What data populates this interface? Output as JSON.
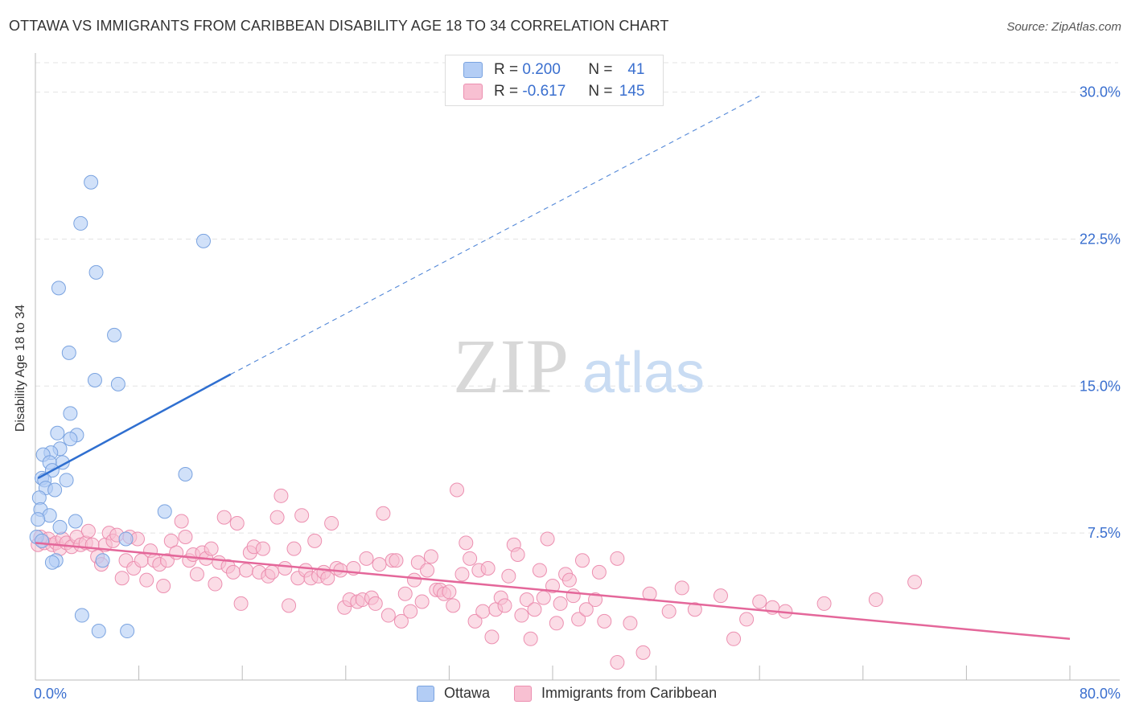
{
  "title": "OTTAWA VS IMMIGRANTS FROM CARIBBEAN DISABILITY AGE 18 TO 34 CORRELATION CHART",
  "source": "Source: ZipAtlas.com",
  "watermark": {
    "zip": "ZIP",
    "atlas": "atlas"
  },
  "legend": {
    "ottawa": {
      "r_label": "R =",
      "r_value": "0.200",
      "n_label": "N =",
      "n_value": "41"
    },
    "caribbean": {
      "r_label": "R =",
      "r_value": "-0.617",
      "n_label": "N =",
      "n_value": "145"
    }
  },
  "bottom_legend": {
    "ottawa": "Ottawa",
    "caribbean": "Immigrants from Caribbean"
  },
  "colors": {
    "ottawa_fill": "#b3cdf5",
    "ottawa_stroke": "#7aa3e0",
    "ottawa_line": "#2f6fd0",
    "caribbean_fill": "#f8c0d2",
    "caribbean_stroke": "#ec8fb0",
    "caribbean_line": "#e4679a",
    "tick_label": "#3a6fcf",
    "grid": "#e3e3e3"
  },
  "chart_data": {
    "type": "scatter",
    "title": "OTTAWA VS IMMIGRANTS FROM CARIBBEAN DISABILITY AGE 18 TO 34 CORRELATION CHART",
    "ylabel": "Disability Age 18 to 34",
    "xlabel": "",
    "xlim": [
      0,
      80
    ],
    "ylim": [
      0,
      31.5
    ],
    "x_tick_labels": [
      "0.0%",
      "80.0%"
    ],
    "y_ticks": [
      7.5,
      15.0,
      22.5,
      30.0
    ],
    "y_tick_labels": [
      "7.5%",
      "15.0%",
      "22.5%",
      "30.0%"
    ],
    "grid": true,
    "series": [
      {
        "name": "Ottawa",
        "trend": {
          "x": [
            0.2,
            15.1
          ],
          "y": [
            10.3,
            15.6
          ],
          "dashed_to": [
            56.0,
            29.8
          ]
        },
        "points": [
          [
            4.3,
            25.4
          ],
          [
            3.5,
            23.3
          ],
          [
            13.0,
            22.4
          ],
          [
            4.7,
            20.8
          ],
          [
            1.8,
            20.0
          ],
          [
            6.1,
            17.6
          ],
          [
            2.6,
            16.7
          ],
          [
            4.6,
            15.3
          ],
          [
            6.4,
            15.1
          ],
          [
            2.7,
            13.6
          ],
          [
            1.7,
            12.6
          ],
          [
            3.2,
            12.5
          ],
          [
            2.7,
            12.3
          ],
          [
            1.9,
            11.8
          ],
          [
            1.2,
            11.6
          ],
          [
            0.6,
            11.5
          ],
          [
            2.1,
            11.1
          ],
          [
            1.1,
            11.1
          ],
          [
            1.3,
            10.7
          ],
          [
            0.5,
            10.3
          ],
          [
            0.7,
            10.2
          ],
          [
            2.4,
            10.2
          ],
          [
            11.6,
            10.5
          ],
          [
            0.8,
            9.8
          ],
          [
            1.5,
            9.7
          ],
          [
            0.3,
            9.3
          ],
          [
            0.4,
            8.7
          ],
          [
            1.1,
            8.4
          ],
          [
            10.0,
            8.6
          ],
          [
            0.2,
            8.2
          ],
          [
            3.1,
            8.1
          ],
          [
            1.9,
            7.8
          ],
          [
            7.0,
            7.2
          ],
          [
            1.6,
            6.1
          ],
          [
            1.3,
            6.0
          ],
          [
            5.2,
            6.1
          ],
          [
            3.6,
            3.3
          ],
          [
            4.9,
            2.5
          ],
          [
            7.1,
            2.5
          ],
          [
            0.1,
            7.3
          ],
          [
            0.5,
            7.1
          ]
        ]
      },
      {
        "name": "Immigrants from Caribbean",
        "trend": {
          "x": [
            0.0,
            80.0
          ],
          "y": [
            7.0,
            2.1
          ]
        },
        "points": [
          [
            0.2,
            6.9
          ],
          [
            0.4,
            7.3
          ],
          [
            0.7,
            7.0
          ],
          [
            1.0,
            7.2
          ],
          [
            1.3,
            6.9
          ],
          [
            1.6,
            7.0
          ],
          [
            1.9,
            6.7
          ],
          [
            2.1,
            7.2
          ],
          [
            2.4,
            7.0
          ],
          [
            2.8,
            6.8
          ],
          [
            3.2,
            7.3
          ],
          [
            3.5,
            6.9
          ],
          [
            3.9,
            7.0
          ],
          [
            4.1,
            7.6
          ],
          [
            4.4,
            6.9
          ],
          [
            4.8,
            6.3
          ],
          [
            5.1,
            5.9
          ],
          [
            5.4,
            6.9
          ],
          [
            5.7,
            7.5
          ],
          [
            6.0,
            7.1
          ],
          [
            6.3,
            7.4
          ],
          [
            6.7,
            5.2
          ],
          [
            7.0,
            6.1
          ],
          [
            7.3,
            7.3
          ],
          [
            7.6,
            5.7
          ],
          [
            7.9,
            7.2
          ],
          [
            8.2,
            6.1
          ],
          [
            8.6,
            5.1
          ],
          [
            8.9,
            6.6
          ],
          [
            9.2,
            6.1
          ],
          [
            9.6,
            5.9
          ],
          [
            9.9,
            4.8
          ],
          [
            10.2,
            6.1
          ],
          [
            10.5,
            7.1
          ],
          [
            10.9,
            6.5
          ],
          [
            11.3,
            8.1
          ],
          [
            11.6,
            7.3
          ],
          [
            11.9,
            6.1
          ],
          [
            12.2,
            6.4
          ],
          [
            12.5,
            5.4
          ],
          [
            12.9,
            6.5
          ],
          [
            13.2,
            6.2
          ],
          [
            13.6,
            6.7
          ],
          [
            13.9,
            4.9
          ],
          [
            14.2,
            6.0
          ],
          [
            14.6,
            8.3
          ],
          [
            14.9,
            5.8
          ],
          [
            15.3,
            5.5
          ],
          [
            15.6,
            8.0
          ],
          [
            15.9,
            3.9
          ],
          [
            16.3,
            5.6
          ],
          [
            16.6,
            6.5
          ],
          [
            16.9,
            6.8
          ],
          [
            17.3,
            5.5
          ],
          [
            17.6,
            6.7
          ],
          [
            18.0,
            5.3
          ],
          [
            18.3,
            5.5
          ],
          [
            18.7,
            8.3
          ],
          [
            19.0,
            9.4
          ],
          [
            19.3,
            5.7
          ],
          [
            19.6,
            3.8
          ],
          [
            20.0,
            6.7
          ],
          [
            20.3,
            5.2
          ],
          [
            20.6,
            8.4
          ],
          [
            20.9,
            5.6
          ],
          [
            21.3,
            5.2
          ],
          [
            21.6,
            7.1
          ],
          [
            21.9,
            5.3
          ],
          [
            22.3,
            5.5
          ],
          [
            22.6,
            5.2
          ],
          [
            22.9,
            8.0
          ],
          [
            23.3,
            5.7
          ],
          [
            23.6,
            5.6
          ],
          [
            23.9,
            3.7
          ],
          [
            24.3,
            4.1
          ],
          [
            24.6,
            5.7
          ],
          [
            24.9,
            4.0
          ],
          [
            25.3,
            4.1
          ],
          [
            25.6,
            6.2
          ],
          [
            26.0,
            4.2
          ],
          [
            26.3,
            3.9
          ],
          [
            26.6,
            5.9
          ],
          [
            26.9,
            8.5
          ],
          [
            27.3,
            3.3
          ],
          [
            27.6,
            6.1
          ],
          [
            27.9,
            6.1
          ],
          [
            28.3,
            3.0
          ],
          [
            28.6,
            4.4
          ],
          [
            29.0,
            3.5
          ],
          [
            29.3,
            5.1
          ],
          [
            29.6,
            6.0
          ],
          [
            29.9,
            4.0
          ],
          [
            30.3,
            5.6
          ],
          [
            30.6,
            6.3
          ],
          [
            31.0,
            4.6
          ],
          [
            31.3,
            4.6
          ],
          [
            31.6,
            4.4
          ],
          [
            32.0,
            4.5
          ],
          [
            32.3,
            3.8
          ],
          [
            32.6,
            9.7
          ],
          [
            33.0,
            5.4
          ],
          [
            33.3,
            7.0
          ],
          [
            33.6,
            6.2
          ],
          [
            34.0,
            3.0
          ],
          [
            34.3,
            5.6
          ],
          [
            34.6,
            3.5
          ],
          [
            35.0,
            5.7
          ],
          [
            35.3,
            2.2
          ],
          [
            35.6,
            3.6
          ],
          [
            36.0,
            4.2
          ],
          [
            36.3,
            3.8
          ],
          [
            36.6,
            5.3
          ],
          [
            37.0,
            6.9
          ],
          [
            37.3,
            6.4
          ],
          [
            37.6,
            3.3
          ],
          [
            38.0,
            4.1
          ],
          [
            38.3,
            2.1
          ],
          [
            38.6,
            3.6
          ],
          [
            39.0,
            5.6
          ],
          [
            39.3,
            4.2
          ],
          [
            39.6,
            7.2
          ],
          [
            40.0,
            4.8
          ],
          [
            40.3,
            2.9
          ],
          [
            40.6,
            3.9
          ],
          [
            41.0,
            5.4
          ],
          [
            41.3,
            5.1
          ],
          [
            41.6,
            4.3
          ],
          [
            42.0,
            3.1
          ],
          [
            42.3,
            6.1
          ],
          [
            42.6,
            3.6
          ],
          [
            43.3,
            4.1
          ],
          [
            43.6,
            5.5
          ],
          [
            44.0,
            3.0
          ],
          [
            45.0,
            6.2
          ],
          [
            46.0,
            2.9
          ],
          [
            47.0,
            1.4
          ],
          [
            47.5,
            4.4
          ],
          [
            49.0,
            3.5
          ],
          [
            50.0,
            4.7
          ],
          [
            51.0,
            3.6
          ],
          [
            53.0,
            4.3
          ],
          [
            54.0,
            2.1
          ],
          [
            55.0,
            3.1
          ],
          [
            56.0,
            4.0
          ],
          [
            57.0,
            3.7
          ],
          [
            58.0,
            3.5
          ],
          [
            61.0,
            3.9
          ],
          [
            65.0,
            4.1
          ],
          [
            68.0,
            5.0
          ],
          [
            45.0,
            0.9
          ]
        ]
      }
    ]
  }
}
